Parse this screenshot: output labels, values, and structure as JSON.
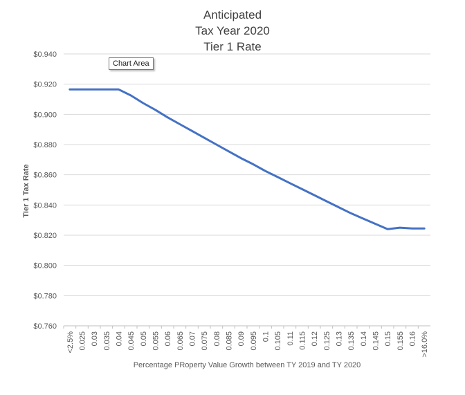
{
  "chart_data": {
    "type": "line",
    "title": [
      "Anticipated",
      "Tax Year 2020",
      "Tier 1 Rate"
    ],
    "xlabel": "Percentage PRoperty Value Growth between TY 2019 and TY 2020",
    "ylabel": "Tier 1 Tax Rate",
    "categories": [
      "<2.5%",
      "0.025",
      "0.03",
      "0.035",
      "0.04",
      "0.045",
      "0.05",
      "0.055",
      "0.06",
      "0.065",
      "0.07",
      "0.075",
      "0.08",
      "0.085",
      "0.09",
      "0.095",
      "0.1",
      "0.105",
      "0.11",
      "0.115",
      "0.12",
      "0.125",
      "0.13",
      "0.135",
      "0.14",
      "0.145",
      "0.15",
      "0.155",
      "0.16",
      ">16.0%"
    ],
    "series": [
      {
        "name": "Tier 1 Rate",
        "color": "#4472c4",
        "values": [
          0.9165,
          0.9165,
          0.9165,
          0.9165,
          0.9165,
          0.9125,
          0.9075,
          0.903,
          0.898,
          0.8935,
          0.889,
          0.8845,
          0.88,
          0.8755,
          0.871,
          0.867,
          0.8625,
          0.8585,
          0.8545,
          0.8505,
          0.8465,
          0.8425,
          0.8385,
          0.8345,
          0.831,
          0.8275,
          0.824,
          0.825,
          0.8245,
          0.8245
        ]
      }
    ],
    "ylim": [
      0.76,
      0.94
    ],
    "yticks": [
      "$0.760",
      "$0.780",
      "$0.800",
      "$0.820",
      "$0.840",
      "$0.860",
      "$0.880",
      "$0.900",
      "$0.920",
      "$0.940"
    ],
    "ytick_values": [
      0.76,
      0.78,
      0.8,
      0.82,
      0.84,
      0.86,
      0.88,
      0.9,
      0.92,
      0.94
    ],
    "grid": true,
    "legend": "none"
  },
  "tooltip": {
    "label": "Chart Area"
  }
}
